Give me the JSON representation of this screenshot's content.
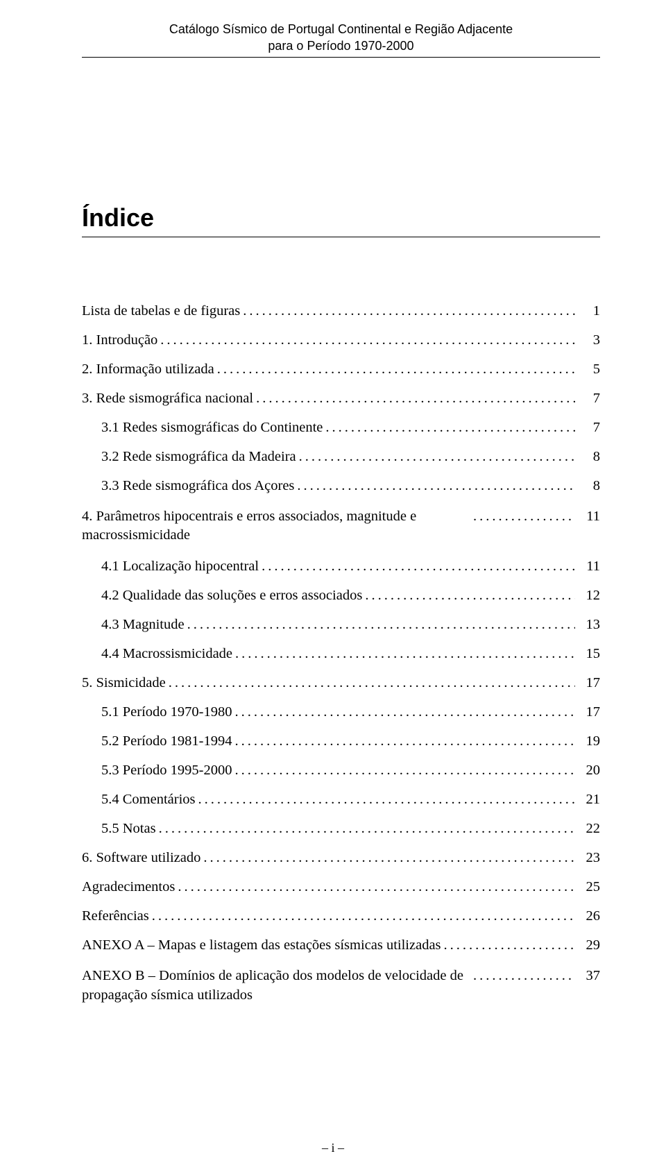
{
  "header": {
    "line1": "Catálogo Sísmico de Portugal Continental e Região Adjacente",
    "line2": "para o Período 1970-2000"
  },
  "title": "Índice",
  "toc": [
    {
      "label": "Lista de tabelas e de figuras",
      "page": "1",
      "indent": 0
    },
    {
      "label": "1. Introdução",
      "page": "3",
      "indent": 0
    },
    {
      "label": "2. Informação utilizada",
      "page": "5",
      "indent": 0
    },
    {
      "label": "3. Rede sismográfica nacional",
      "page": "7",
      "indent": 0
    },
    {
      "label": "3.1 Redes sismográficas do Continente",
      "page": "7",
      "indent": 1
    },
    {
      "label": "3.2 Rede sismográfica da Madeira",
      "page": "8",
      "indent": 1
    },
    {
      "label": "3.3 Rede sismográfica dos Açores",
      "page": "8",
      "indent": 1
    },
    {
      "label": "4. Parâmetros hipocentrais e erros associados, magnitude e macrossismicidade",
      "page": "11",
      "indent": 0,
      "multiline": true
    },
    {
      "label": "4.1 Localização hipocentral",
      "page": "11",
      "indent": 1
    },
    {
      "label": "4.2 Qualidade das soluções e erros associados",
      "page": "12",
      "indent": 1
    },
    {
      "label": "4.3 Magnitude",
      "page": "13",
      "indent": 1
    },
    {
      "label": "4.4 Macrossismicidade",
      "page": "15",
      "indent": 1
    },
    {
      "label": "5. Sismicidade",
      "page": "17",
      "indent": 0
    },
    {
      "label": "5.1 Período 1970-1980",
      "page": "17",
      "indent": 1
    },
    {
      "label": "5.2 Período 1981-1994",
      "page": "19",
      "indent": 1
    },
    {
      "label": "5.3 Período 1995-2000",
      "page": "20",
      "indent": 1
    },
    {
      "label": "5.4 Comentários",
      "page": "21",
      "indent": 1
    },
    {
      "label": "5.5 Notas",
      "page": "22",
      "indent": 1
    },
    {
      "label": "6. Software utilizado",
      "page": "23",
      "indent": 0
    },
    {
      "label": "Agradecimentos",
      "page": "25",
      "indent": 0
    },
    {
      "label": "Referências",
      "page": "26",
      "indent": 0
    },
    {
      "label": "ANEXO A    – Mapas e listagem das estações sísmicas utilizadas",
      "page": "29",
      "indent": 0
    },
    {
      "label": "ANEXO B    – Domínios de aplicação dos modelos de velocidade de propagação sísmica utilizados",
      "page": "37",
      "indent": 0,
      "multiline": true
    }
  ],
  "footer": "– i –"
}
